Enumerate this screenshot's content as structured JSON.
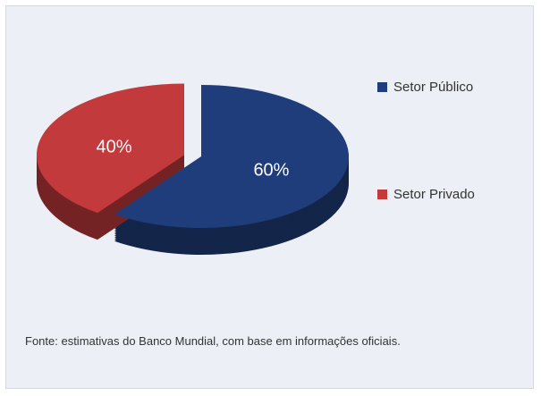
{
  "chart_data": {
    "type": "pie",
    "categories": [
      "Setor Público",
      "Setor Privado"
    ],
    "values": [
      60,
      40
    ],
    "value_labels": [
      "60%",
      "40%"
    ],
    "colors": [
      "#1f3d7a",
      "#c23a3c"
    ],
    "note": "Fonte: estimativas do Banco Mundial, com base em informações oficiais."
  }
}
